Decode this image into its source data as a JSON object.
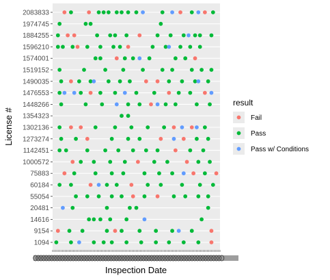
{
  "chart_data": {
    "type": "scatter",
    "xlabel": "Inspection Date",
    "ylabel": "License #",
    "categories": [
      "2083833",
      "1974745",
      "1884255",
      "1596210",
      "1574001",
      "1519152",
      "1490035",
      "1476553",
      "1448266",
      "1354323",
      "1302136",
      "1273274",
      "1142451",
      "1000572",
      "75883",
      "60184",
      "55054",
      "20481",
      "14616",
      "9154",
      "1094"
    ],
    "x_tick_labels": "overplotted, illegible",
    "grid": true,
    "legend": {
      "title": "result",
      "position": "right",
      "items": [
        {
          "label": "Fail",
          "color": "#F8766D"
        },
        {
          "label": "Pass",
          "color": "#00BA38"
        },
        {
          "label": "Pass w/ Conditions",
          "color": "#619CFF"
        }
      ]
    },
    "series": [
      {
        "name": "Fail",
        "points": [
          [
            "2083833",
            0.06
          ],
          [
            "2083833",
            0.21
          ],
          [
            "2083833",
            0.77
          ],
          [
            "2083833",
            0.92
          ],
          [
            "1884255",
            0.08
          ],
          [
            "1884255",
            0.12
          ],
          [
            "1884255",
            0.52
          ],
          [
            "1596210",
            0.14
          ],
          [
            "1596210",
            0.45
          ],
          [
            "1574001",
            0.38
          ],
          [
            "1574001",
            0.86
          ],
          [
            "1490035",
            0.1
          ],
          [
            "1490035",
            0.56
          ],
          [
            "1490035",
            0.63
          ],
          [
            "1476553",
            0.22
          ],
          [
            "1476553",
            0.7
          ],
          [
            "1476553",
            0.92
          ],
          [
            "1448266",
            0.59
          ],
          [
            "1302136",
            0.1
          ],
          [
            "1302136",
            0.16
          ],
          [
            "1302136",
            0.73
          ],
          [
            "1302136",
            0.84
          ],
          [
            "1273274",
            0.2
          ],
          [
            "1273274",
            0.65
          ],
          [
            "1273274",
            0.79
          ],
          [
            "1142451",
            0.74
          ],
          [
            "1000572",
            0.11
          ],
          [
            "1000572",
            0.51
          ],
          [
            "1000572",
            0.81
          ],
          [
            "75883",
            0.06
          ],
          [
            "75883",
            0.85
          ],
          [
            "75883",
            0.99
          ],
          [
            "60184",
            0.22
          ],
          [
            "60184",
            0.47
          ],
          [
            "55054",
            0.48
          ],
          [
            "55054",
            0.63
          ],
          [
            "9154",
            0.02
          ],
          [
            "9154",
            0.37
          ],
          [
            "9154",
            0.96
          ],
          [
            "1094",
            0.96
          ]
        ]
      },
      {
        "name": "Pass",
        "points": [
          [
            "2083833",
            0.1
          ],
          [
            "2083833",
            0.27
          ],
          [
            "2083833",
            0.3
          ],
          [
            "2083833",
            0.33
          ],
          [
            "2083833",
            0.38
          ],
          [
            "2083833",
            0.41
          ],
          [
            "2083833",
            0.45
          ],
          [
            "2083833",
            0.5
          ],
          [
            "2083833",
            0.66
          ],
          [
            "2083833",
            0.84
          ],
          [
            "2083833",
            0.97
          ],
          [
            "1974745",
            0.03
          ],
          [
            "1974745",
            0.19
          ],
          [
            "1974745",
            0.22
          ],
          [
            "1974745",
            0.65
          ],
          [
            "1884255",
            0.02
          ],
          [
            "1884255",
            0.26
          ],
          [
            "1884255",
            0.34
          ],
          [
            "1884255",
            0.37
          ],
          [
            "1884255",
            0.44
          ],
          [
            "1884255",
            0.63
          ],
          [
            "1884255",
            0.71
          ],
          [
            "1884255",
            0.79
          ],
          [
            "1884255",
            0.86
          ],
          [
            "1884255",
            0.89
          ],
          [
            "1884255",
            0.96
          ],
          [
            "1596210",
            0.02
          ],
          [
            "1596210",
            0.05
          ],
          [
            "1596210",
            0.11
          ],
          [
            "1596210",
            0.2
          ],
          [
            "1596210",
            0.28
          ],
          [
            "1596210",
            0.36
          ],
          [
            "1596210",
            0.4
          ],
          [
            "1596210",
            0.6
          ],
          [
            "1596210",
            0.68
          ],
          [
            "1596210",
            0.77
          ],
          [
            "1596210",
            0.83
          ],
          [
            "1596210",
            0.89
          ],
          [
            "1574001",
            0.25
          ],
          [
            "1574001",
            0.28
          ],
          [
            "1574001",
            0.43
          ],
          [
            "1574001",
            0.48
          ],
          [
            "1574001",
            0.58
          ],
          [
            "1574001",
            0.74
          ],
          [
            "1574001",
            0.8
          ],
          [
            "1519152",
            0.03
          ],
          [
            "1519152",
            0.18
          ],
          [
            "1519152",
            0.31
          ],
          [
            "1519152",
            0.42
          ],
          [
            "1519152",
            0.54
          ],
          [
            "1519152",
            0.66
          ],
          [
            "1519152",
            0.72
          ],
          [
            "1519152",
            0.84
          ],
          [
            "1519152",
            0.9
          ],
          [
            "1519152",
            0.96
          ],
          [
            "1490035",
            0.04
          ],
          [
            "1490035",
            0.15
          ],
          [
            "1490035",
            0.22
          ],
          [
            "1490035",
            0.33
          ],
          [
            "1490035",
            0.4
          ],
          [
            "1490035",
            0.46
          ],
          [
            "1490035",
            0.7
          ],
          [
            "1490035",
            0.78
          ],
          [
            "1490035",
            0.86
          ],
          [
            "1490035",
            0.94
          ],
          [
            "1476553",
            0.03
          ],
          [
            "1476553",
            0.16
          ],
          [
            "1476553",
            0.28
          ],
          [
            "1476553",
            0.37
          ],
          [
            "1476553",
            0.5
          ],
          [
            "1476553",
            0.61
          ],
          [
            "1476553",
            0.76
          ],
          [
            "1476553",
            0.83
          ],
          [
            "1448266",
            0.04
          ],
          [
            "1448266",
            0.19
          ],
          [
            "1448266",
            0.29
          ],
          [
            "1448266",
            0.45
          ],
          [
            "1448266",
            0.52
          ],
          [
            "1448266",
            0.68
          ],
          [
            "1448266",
            0.74
          ],
          [
            "1448266",
            0.87
          ],
          [
            "1448266",
            0.95
          ],
          [
            "1354323",
            0.41
          ],
          [
            "1354323",
            0.45
          ],
          [
            "1302136",
            0.03
          ],
          [
            "1302136",
            0.25
          ],
          [
            "1302136",
            0.37
          ],
          [
            "1302136",
            0.47
          ],
          [
            "1302136",
            0.57
          ],
          [
            "1302136",
            0.67
          ],
          [
            "1302136",
            0.92
          ],
          [
            "1273274",
            0.04
          ],
          [
            "1273274",
            0.13
          ],
          [
            "1273274",
            0.35
          ],
          [
            "1273274",
            0.45
          ],
          [
            "1273274",
            0.52
          ],
          [
            "1273274",
            0.87
          ],
          [
            "1273274",
            0.94
          ],
          [
            "1142451",
            0.03
          ],
          [
            "1142451",
            0.07
          ],
          [
            "1142451",
            0.2
          ],
          [
            "1142451",
            0.31
          ],
          [
            "1142451",
            0.39
          ],
          [
            "1142451",
            0.48
          ],
          [
            "1142451",
            0.56
          ],
          [
            "1142451",
            0.63
          ],
          [
            "1142451",
            0.83
          ],
          [
            "1142451",
            0.91
          ],
          [
            "1000572",
            0.16
          ],
          [
            "1000572",
            0.24
          ],
          [
            "1000572",
            0.34
          ],
          [
            "1000572",
            0.43
          ],
          [
            "1000572",
            0.61
          ],
          [
            "1000572",
            0.69
          ],
          [
            "1000572",
            0.88
          ],
          [
            "1000572",
            0.95
          ],
          [
            "75883",
            0.12
          ],
          [
            "75883",
            0.25
          ],
          [
            "75883",
            0.35
          ],
          [
            "75883",
            0.42
          ],
          [
            "75883",
            0.55
          ],
          [
            "75883",
            0.64
          ],
          [
            "75883",
            0.72
          ],
          [
            "75883",
            0.92
          ],
          [
            "60184",
            0.03
          ],
          [
            "60184",
            0.1
          ],
          [
            "60184",
            0.32
          ],
          [
            "60184",
            0.38
          ],
          [
            "60184",
            0.57
          ],
          [
            "60184",
            0.65
          ],
          [
            "60184",
            0.78
          ],
          [
            "60184",
            0.89
          ],
          [
            "60184",
            0.97
          ],
          [
            "55054",
            0.13
          ],
          [
            "55054",
            0.2
          ],
          [
            "55054",
            0.27
          ],
          [
            "55054",
            0.35
          ],
          [
            "55054",
            0.41
          ],
          [
            "55054",
            0.55
          ],
          [
            "55054",
            0.73
          ],
          [
            "55054",
            0.8
          ],
          [
            "55054",
            0.88
          ],
          [
            "55054",
            0.94
          ],
          [
            "20481",
            0.11
          ],
          [
            "20481",
            0.32
          ],
          [
            "20481",
            0.46
          ],
          [
            "20481",
            0.5
          ],
          [
            "20481",
            0.94
          ],
          [
            "14616",
            0.21
          ],
          [
            "14616",
            0.24
          ],
          [
            "14616",
            0.28
          ],
          [
            "14616",
            0.34
          ],
          [
            "14616",
            0.44
          ],
          [
            "14616",
            0.9
          ],
          [
            "9154",
            0.09
          ],
          [
            "9154",
            0.17
          ],
          [
            "9154",
            0.32
          ],
          [
            "9154",
            0.41
          ],
          [
            "9154",
            0.52
          ],
          [
            "9154",
            0.62
          ],
          [
            "9154",
            0.72
          ],
          [
            "9154",
            0.84
          ],
          [
            "1094",
            0.01
          ],
          [
            "1094",
            0.1
          ],
          [
            "1094",
            0.24
          ],
          [
            "1094",
            0.3
          ],
          [
            "1094",
            0.35
          ],
          [
            "1094",
            0.44
          ],
          [
            "1094",
            0.53
          ],
          [
            "1094",
            0.62
          ],
          [
            "1094",
            0.7
          ],
          [
            "1094",
            0.79
          ],
          [
            "1094",
            0.88
          ]
        ]
      },
      {
        "name": "Pass w/ Conditions",
        "points": [
          [
            "2083833",
            0.54
          ],
          [
            "2083833",
            0.72
          ],
          [
            "2083833",
            0.88
          ],
          [
            "1884255",
            0.82
          ],
          [
            "1596210",
            0.7
          ],
          [
            "1574001",
            0.52
          ],
          [
            "1490035",
            0.24
          ],
          [
            "1490035",
            0.88
          ],
          [
            "1476553",
            0.06
          ],
          [
            "1476553",
            0.12
          ],
          [
            "1476553",
            0.43
          ],
          [
            "1476553",
            0.96
          ],
          [
            "1448266",
            0.38
          ],
          [
            "1448266",
            0.63
          ],
          [
            "1302136",
            0.78
          ],
          [
            "1302136",
            0.87
          ],
          [
            "1273274",
            0.73
          ],
          [
            "75883",
            0.79
          ],
          [
            "60184",
            0.27
          ],
          [
            "20481",
            0.05
          ],
          [
            "14616",
            0.55
          ],
          [
            "9154",
            0.76
          ],
          [
            "1094",
            0.15
          ]
        ]
      }
    ]
  }
}
